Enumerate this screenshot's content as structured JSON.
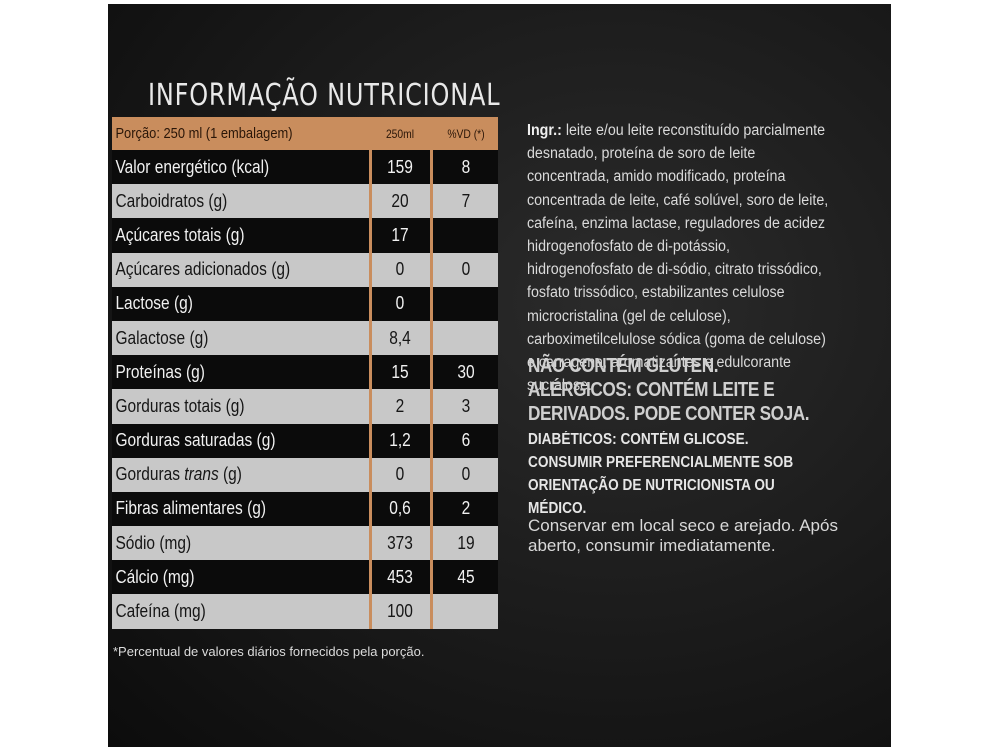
{
  "title": "INFORMAÇÃO NUTRICIONAL",
  "table": {
    "header": {
      "label": "Porção: 250 ml (1 embalagem)",
      "col_value": "250ml",
      "col_vd": "%VD (*)"
    },
    "rows": [
      {
        "label": "Valor energético (kcal)",
        "value": "159",
        "vd": "8"
      },
      {
        "label": "Carboidratos (g)",
        "value": "20",
        "vd": "7"
      },
      {
        "label": "Açúcares totais (g)",
        "value": "17",
        "vd": ""
      },
      {
        "label": "Açúcares adicionados (g)",
        "value": "0",
        "vd": "0"
      },
      {
        "label": "Lactose (g)",
        "value": "0",
        "vd": ""
      },
      {
        "label": "Galactose (g)",
        "value": "8,4",
        "vd": ""
      },
      {
        "label": "Proteínas (g)",
        "value": "15",
        "vd": "30"
      },
      {
        "label": "Gorduras totais (g)",
        "value": "2",
        "vd": "3"
      },
      {
        "label": "Gorduras saturadas (g)",
        "value": "1,2",
        "vd": "6"
      },
      {
        "label_prefix": "Gorduras ",
        "label_italic": "trans",
        "label_suffix": " (g)",
        "value": "0",
        "vd": "0"
      },
      {
        "label": "Fibras alimentares (g)",
        "value": "0,6",
        "vd": "2"
      },
      {
        "label": "Sódio (mg)",
        "value": "373",
        "vd": "19"
      },
      {
        "label": "Cálcio (mg)",
        "value": "453",
        "vd": "45"
      },
      {
        "label": "Cafeína (mg)",
        "value": "100",
        "vd": ""
      }
    ]
  },
  "footnote": "*Percentual de valores diários fornecidos pela porção.",
  "ingredients": {
    "label": "Ingr.:",
    "text": " leite e/ou leite reconstituído parcialmente desnatado, proteína de soro de leite concentrada, amido modificado, proteína concentrada de leite, café solúvel, soro de leite, cafeína, enzima lactase, reguladores de acidez hidrogenofosfato de di-potássio, hidrogenofosfato de di-sódio, citrato trissódico, fosfato trissódico, estabilizantes celulose microcristalina (gel de celulose), carboximetilcelulose sódica (goma de celulose) e carragena, aromatizantes e edulcorante sucralose."
  },
  "allergen_warning": "NÃO CONTÉM GLÚTEN. ALÉRGICOS: CONTÉM LEITE E DERIVADOS. PODE CONTER SOJA.",
  "diabetic_warning": {
    "line1": "DIABÉTICOS: CONTÉM GLICOSE.",
    "line2": "CONSUMIR PREFERENCIALMENTE SOB ORIENTAÇÃO DE NUTRICIONISTA OU MÉDICO."
  },
  "storage": "Conservar em local seco e arejado. Após aberto, consumir imediatamente.",
  "colors": {
    "accent": "#c98d5d",
    "panel": "#1a1a1a",
    "row_light": "#c8c8c8",
    "row_dark": "#0b0b0b"
  }
}
